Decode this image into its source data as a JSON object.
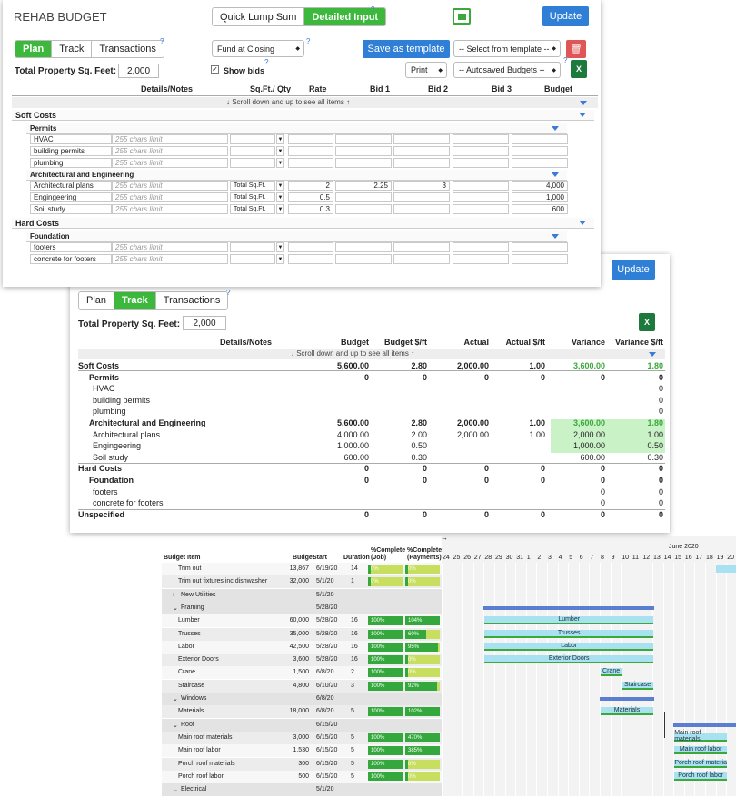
{
  "plan": {
    "title": "REHAB BUDGET",
    "mode_tabs": [
      "Quick Lump Sum",
      "Detailed Input"
    ],
    "update": "Update",
    "tabs": [
      "Plan",
      "Track",
      "Transactions"
    ],
    "fund_select": "Fund at Closing",
    "save_template": "Save as template",
    "select_template": "-- Select from template --",
    "print": "Print",
    "autosaved": "-- Autosaved Budgets --",
    "sqft_label": "Total Property Sq. Feet:",
    "sqft_value": "2,000",
    "show_bids": "Show bids",
    "columns": [
      "Details/Notes",
      "Sq.Ft./ Qty",
      "Rate",
      "Bid 1",
      "Bid 2",
      "Bid 3",
      "Budget"
    ],
    "scroll_hint": "↓ Scroll down and up to see all items ↑",
    "soft_costs": "Soft Costs",
    "permits": "Permits",
    "permit_items": [
      "HVAC",
      "building permits",
      "plumbing"
    ],
    "placeholder": "255 chars limit",
    "arch": "Architectural and Engineering",
    "arch_items": [
      {
        "name": "Architectural plans",
        "unit": "Total Sq.Ft.",
        "rate": "2",
        "bid1": "2.25",
        "bid2": "3",
        "budget": "4,000"
      },
      {
        "name": "Engingeering",
        "unit": "Total Sq.Ft.",
        "rate": "0.5",
        "bid1": "",
        "bid2": "",
        "budget": "1,000"
      },
      {
        "name": "Soil study",
        "unit": "Total Sq.Ft.",
        "rate": "0.3",
        "bid1": "",
        "bid2": "",
        "budget": "600"
      }
    ],
    "hard_costs": "Hard Costs",
    "foundation": "Foundation",
    "foundation_items": [
      "footers",
      "concrete for footers"
    ]
  },
  "track": {
    "update": "Update",
    "tabs": [
      "Plan",
      "Track",
      "Transactions"
    ],
    "sqft_label": "Total Property Sq. Feet:",
    "sqft_value": "2,000",
    "columns": [
      "Details/Notes",
      "Budget",
      "Budget $/ft",
      "Actual",
      "Actual $/ft",
      "Variance",
      "Variance $/ft"
    ],
    "scroll_hint": "↓ Scroll down and up to see all items ↑",
    "rows": [
      {
        "name": "Soft Costs",
        "level": 0,
        "bold": true,
        "v": [
          "5,600.00",
          "2.80",
          "2,000.00",
          "1.00",
          "3,600.00",
          "1.80"
        ],
        "green": true
      },
      {
        "name": "Permits",
        "level": 1,
        "bold": true,
        "v": [
          "0",
          "0",
          "0",
          "0",
          "0",
          "0"
        ]
      },
      {
        "name": "HVAC",
        "level": 2,
        "v": [
          "",
          "",
          "",
          "",
          "",
          "0"
        ]
      },
      {
        "name": "building permits",
        "level": 2,
        "v": [
          "",
          "",
          "",
          "",
          "",
          "0"
        ]
      },
      {
        "name": "plumbing",
        "level": 2,
        "v": [
          "",
          "",
          "",
          "",
          "",
          "0"
        ]
      },
      {
        "name": "Architectural and Engineering",
        "level": 1,
        "bold": true,
        "v": [
          "5,600.00",
          "2.80",
          "2,000.00",
          "1.00",
          "3,600.00",
          "1.80"
        ],
        "green": true
      },
      {
        "name": "Architectural plans",
        "level": 2,
        "v": [
          "4,000.00",
          "2.00",
          "2,000.00",
          "1.00",
          "2,000.00",
          "1.00"
        ],
        "fill": true
      },
      {
        "name": "Engingeering",
        "level": 2,
        "v": [
          "1,000.00",
          "0.50",
          "",
          "",
          "1,000.00",
          "0.50"
        ],
        "fill": true
      },
      {
        "name": "Soil study",
        "level": 2,
        "v": [
          "600.00",
          "0.30",
          "",
          "",
          "600.00",
          "0.30"
        ],
        "fill": true
      },
      {
        "name": "Hard Costs",
        "level": 0,
        "bold": true,
        "v": [
          "0",
          "0",
          "0",
          "0",
          "0",
          "0"
        ]
      },
      {
        "name": "Foundation",
        "level": 1,
        "bold": true,
        "v": [
          "0",
          "0",
          "0",
          "0",
          "0",
          "0"
        ]
      },
      {
        "name": "footers",
        "level": 2,
        "v": [
          "",
          "",
          "",
          "",
          "0",
          "0"
        ]
      },
      {
        "name": "concrete for footers",
        "level": 2,
        "v": [
          "",
          "",
          "",
          "",
          "0",
          "0"
        ]
      },
      {
        "name": "Unspecified",
        "level": 0,
        "bold": true,
        "v": [
          "0",
          "0",
          "0",
          "0",
          "0",
          "0"
        ]
      }
    ]
  },
  "gantt": {
    "month": "June 2020",
    "headers": [
      "Budget Item",
      "Budget",
      "Start",
      "Duration",
      "%Complete (Job)",
      "%Complete (Payments)"
    ],
    "days": [
      "24",
      "25",
      "26",
      "27",
      "28",
      "29",
      "30",
      "31",
      "1",
      "2",
      "3",
      "4",
      "5",
      "6",
      "7",
      "8",
      "9",
      "10",
      "11",
      "12",
      "13",
      "14",
      "15",
      "16",
      "17",
      "18",
      "19",
      "20"
    ],
    "rows": [
      {
        "name": "Trim out",
        "budget": "13,867",
        "start": "6/19/20",
        "dur": "14",
        "job": "0%",
        "pay": "0%",
        "jp": 0,
        "pp": 0
      },
      {
        "name": "Trim out fixtures inc dishwasher",
        "budget": "32,000",
        "start": "5/1/20",
        "dur": "1",
        "job": "0%",
        "pay": "0%",
        "jp": 0,
        "pp": 0
      },
      {
        "name": "New Utilities",
        "group": true,
        "start": "5/1/20",
        "open": false
      },
      {
        "name": "Framing",
        "group": true,
        "start": "5/28/20",
        "open": true
      },
      {
        "name": "Lumber",
        "budget": "60,000",
        "start": "5/28/20",
        "dur": "16",
        "job": "100%",
        "pay": "104%",
        "jp": 1,
        "pp": 1
      },
      {
        "name": "Trusses",
        "budget": "35,000",
        "start": "5/28/20",
        "dur": "16",
        "job": "100%",
        "pay": "60%",
        "jp": 1,
        "pp": 0.6
      },
      {
        "name": "Labor",
        "budget": "42,500",
        "start": "5/28/20",
        "dur": "16",
        "job": "100%",
        "pay": "95%",
        "jp": 1,
        "pp": 0.95
      },
      {
        "name": "Exterior Doors",
        "budget": "3,600",
        "start": "5/28/20",
        "dur": "16",
        "job": "100%",
        "pay": "0%",
        "jp": 1,
        "pp": 0
      },
      {
        "name": "Crane",
        "budget": "1,500",
        "start": "6/8/20",
        "dur": "2",
        "job": "100%",
        "pay": "0%",
        "jp": 1,
        "pp": 0
      },
      {
        "name": "Staircase",
        "budget": "4,800",
        "start": "6/10/20",
        "dur": "3",
        "job": "100%",
        "pay": "92%",
        "jp": 1,
        "pp": 0.92
      },
      {
        "name": "Windows",
        "group": true,
        "start": "6/8/20",
        "open": true
      },
      {
        "name": "Materials",
        "budget": "18,000",
        "start": "6/8/20",
        "dur": "5",
        "job": "100%",
        "pay": "102%",
        "jp": 1,
        "pp": 1
      },
      {
        "name": "Roof",
        "group": true,
        "start": "6/15/20",
        "open": true
      },
      {
        "name": "Main roof materials",
        "budget": "3,000",
        "start": "6/15/20",
        "dur": "5",
        "job": "100%",
        "pay": "470%",
        "jp": 1,
        "pp": 1
      },
      {
        "name": "Main roof labor",
        "budget": "1,530",
        "start": "6/15/20",
        "dur": "5",
        "job": "100%",
        "pay": "385%",
        "jp": 1,
        "pp": 1
      },
      {
        "name": "Porch roof materials",
        "budget": "300",
        "start": "6/15/20",
        "dur": "5",
        "job": "100%",
        "pay": "0%",
        "jp": 1,
        "pp": 0
      },
      {
        "name": "Porch roof labor",
        "budget": "500",
        "start": "6/15/20",
        "dur": "5",
        "job": "100%",
        "pay": "0%",
        "jp": 1,
        "pp": 0
      },
      {
        "name": "Electrical",
        "group": true,
        "start": "5/1/20",
        "open": true
      }
    ],
    "bars": [
      "Lumber",
      "Trusses",
      "Labor",
      "Exterior Doors",
      "Crane",
      "Staircase",
      "Materials",
      "Main roof materials",
      "Main roof labor",
      "Porch roof materia",
      "Porch roof labor"
    ]
  }
}
